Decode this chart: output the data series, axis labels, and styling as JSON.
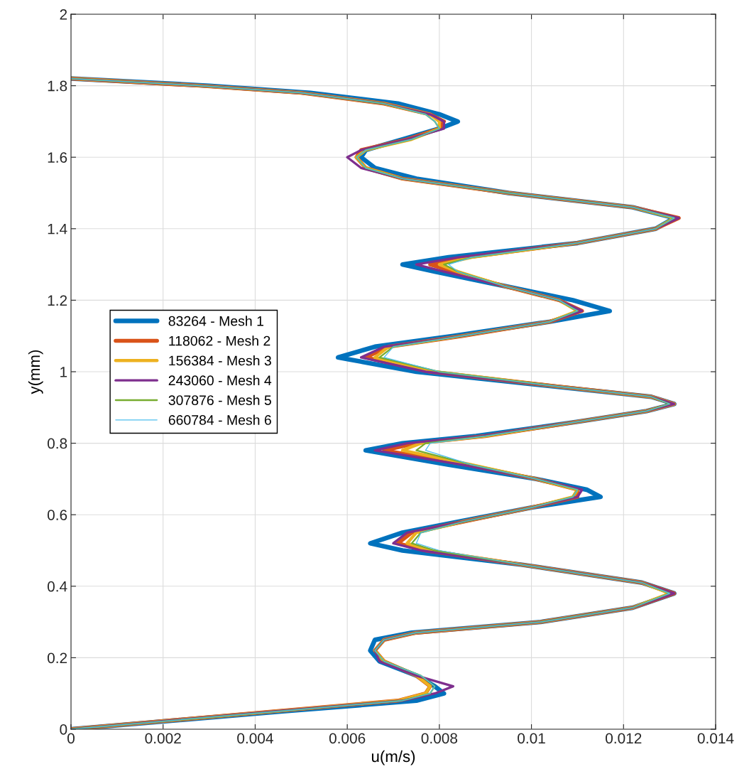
{
  "chart_data": {
    "type": "line",
    "xlabel": "u(m/s)",
    "ylabel": "y(mm)",
    "xlim": [
      0,
      0.014
    ],
    "ylim": [
      0,
      2
    ],
    "xticks": [
      0,
      0.002,
      0.004,
      0.006,
      0.008,
      0.01,
      0.012,
      0.014
    ],
    "yticks": [
      0,
      0.2,
      0.4,
      0.6,
      0.8,
      1,
      1.2,
      1.4,
      1.6,
      1.8,
      2
    ],
    "grid": true,
    "legend": "center left",
    "marker": "none",
    "line_style": "solid",
    "series": [
      {
        "name": "83264 - Mesh 1",
        "color": "#0072bd",
        "x": [
          0,
          0.0046,
          0.0075,
          0.0081,
          0.0079,
          0.0075,
          0.0067,
          0.0065,
          0.0066,
          0.0074,
          0.0102,
          0.0122,
          0.0131,
          0.0124,
          0.0098,
          0.0072,
          0.0065,
          0.0072,
          0.0084,
          0.01,
          0.0115,
          0.0112,
          0.0101,
          0.0082,
          0.0064,
          0.0072,
          0.0088,
          0.011,
          0.0125,
          0.0131,
          0.0126,
          0.0104,
          0.0075,
          0.0058,
          0.0066,
          0.0083,
          0.0104,
          0.0117,
          0.0109,
          0.0094,
          0.0079,
          0.0072,
          0.0082,
          0.011,
          0.0127,
          0.0131,
          0.0122,
          0.0095,
          0.0075,
          0.0066,
          0.0063,
          0.0064,
          0.0072,
          0.008,
          0.0084,
          0.008,
          0.0071,
          0.0052,
          0.003,
          0
        ],
        "values": [
          0,
          0.05,
          0.08,
          0.1,
          0.12,
          0.15,
          0.19,
          0.22,
          0.25,
          0.27,
          0.3,
          0.34,
          0.38,
          0.41,
          0.46,
          0.5,
          0.52,
          0.55,
          0.58,
          0.62,
          0.65,
          0.67,
          0.7,
          0.74,
          0.78,
          0.8,
          0.82,
          0.86,
          0.89,
          0.91,
          0.93,
          0.96,
          1,
          1.04,
          1.07,
          1.1,
          1.14,
          1.17,
          1.2,
          1.24,
          1.28,
          1.3,
          1.32,
          1.36,
          1.4,
          1.43,
          1.46,
          1.5,
          1.54,
          1.57,
          1.6,
          1.62,
          1.65,
          1.68,
          1.7,
          1.72,
          1.75,
          1.78,
          1.8,
          1.82
        ]
      },
      {
        "name": "118062 - Mesh 2",
        "color": "#d95319",
        "x": [
          0,
          0.0044,
          0.0071,
          0.0077,
          0.0078,
          0.0075,
          0.0068,
          0.0066,
          0.0068,
          0.0075,
          0.0102,
          0.0122,
          0.0131,
          0.0124,
          0.0098,
          0.0077,
          0.0071,
          0.0074,
          0.0085,
          0.01,
          0.011,
          0.011,
          0.0101,
          0.0086,
          0.0068,
          0.0075,
          0.009,
          0.011,
          0.0125,
          0.0131,
          0.0126,
          0.0105,
          0.0078,
          0.0064,
          0.0069,
          0.0085,
          0.0104,
          0.0111,
          0.0106,
          0.0094,
          0.0083,
          0.0078,
          0.0086,
          0.011,
          0.0127,
          0.0132,
          0.0122,
          0.0095,
          0.0072,
          0.0064,
          0.0062,
          0.0063,
          0.0073,
          0.008,
          0.0081,
          0.0078,
          0.0068,
          0.005,
          0.0028,
          0
        ],
        "values": [
          0,
          0.05,
          0.08,
          0.1,
          0.12,
          0.15,
          0.19,
          0.22,
          0.25,
          0.27,
          0.3,
          0.34,
          0.38,
          0.41,
          0.46,
          0.5,
          0.52,
          0.55,
          0.58,
          0.62,
          0.65,
          0.67,
          0.7,
          0.74,
          0.78,
          0.8,
          0.82,
          0.86,
          0.89,
          0.91,
          0.93,
          0.96,
          1,
          1.04,
          1.07,
          1.1,
          1.14,
          1.17,
          1.2,
          1.24,
          1.28,
          1.3,
          1.32,
          1.36,
          1.4,
          1.43,
          1.46,
          1.5,
          1.54,
          1.57,
          1.6,
          1.62,
          1.65,
          1.68,
          1.7,
          1.72,
          1.75,
          1.78,
          1.8,
          1.82
        ]
      },
      {
        "name": "156384 - Mesh 3",
        "color": "#edb120",
        "x": [
          0,
          0.0044,
          0.0071,
          0.0077,
          0.0078,
          0.0075,
          0.0068,
          0.0066,
          0.0068,
          0.0075,
          0.0102,
          0.0122,
          0.013,
          0.0124,
          0.0098,
          0.0078,
          0.0073,
          0.0075,
          0.0085,
          0.01,
          0.0109,
          0.011,
          0.0101,
          0.0087,
          0.0072,
          0.0076,
          0.009,
          0.011,
          0.0125,
          0.0131,
          0.0126,
          0.0105,
          0.0079,
          0.0066,
          0.0069,
          0.0085,
          0.0104,
          0.011,
          0.0106,
          0.0094,
          0.0084,
          0.008,
          0.0087,
          0.011,
          0.0127,
          0.0131,
          0.0122,
          0.0095,
          0.0072,
          0.0064,
          0.0062,
          0.0064,
          0.0074,
          0.008,
          0.008,
          0.0078,
          0.0068,
          0.005,
          0.0028,
          0
        ],
        "values": [
          0,
          0.05,
          0.08,
          0.1,
          0.12,
          0.15,
          0.19,
          0.22,
          0.25,
          0.27,
          0.3,
          0.34,
          0.38,
          0.41,
          0.46,
          0.5,
          0.52,
          0.55,
          0.58,
          0.62,
          0.65,
          0.67,
          0.7,
          0.74,
          0.78,
          0.8,
          0.82,
          0.86,
          0.89,
          0.91,
          0.93,
          0.96,
          1,
          1.04,
          1.07,
          1.1,
          1.14,
          1.17,
          1.2,
          1.24,
          1.28,
          1.3,
          1.32,
          1.36,
          1.4,
          1.43,
          1.46,
          1.5,
          1.54,
          1.57,
          1.6,
          1.62,
          1.65,
          1.68,
          1.7,
          1.72,
          1.75,
          1.78,
          1.8,
          1.82
        ]
      },
      {
        "name": "243060 - Mesh 4",
        "color": "#7e2f8e",
        "x": [
          0,
          0.0044,
          0.0072,
          0.0079,
          0.0083,
          0.0075,
          0.0067,
          0.0066,
          0.0068,
          0.0075,
          0.0102,
          0.0122,
          0.0131,
          0.0124,
          0.0098,
          0.0076,
          0.007,
          0.0073,
          0.0085,
          0.01,
          0.011,
          0.0111,
          0.0101,
          0.0085,
          0.0066,
          0.0073,
          0.0089,
          0.011,
          0.0125,
          0.0131,
          0.0126,
          0.0105,
          0.0077,
          0.0063,
          0.0068,
          0.0085,
          0.0104,
          0.0111,
          0.0106,
          0.0094,
          0.0081,
          0.0075,
          0.0084,
          0.011,
          0.0127,
          0.0132,
          0.0122,
          0.0095,
          0.0072,
          0.0063,
          0.006,
          0.0063,
          0.0073,
          0.0081,
          0.0081,
          0.0078,
          0.0068,
          0.005,
          0.0028,
          0
        ],
        "values": [
          0,
          0.05,
          0.08,
          0.1,
          0.12,
          0.15,
          0.19,
          0.22,
          0.25,
          0.27,
          0.3,
          0.34,
          0.38,
          0.41,
          0.46,
          0.5,
          0.52,
          0.55,
          0.58,
          0.62,
          0.65,
          0.67,
          0.7,
          0.74,
          0.78,
          0.8,
          0.82,
          0.86,
          0.89,
          0.91,
          0.93,
          0.96,
          1,
          1.04,
          1.07,
          1.1,
          1.14,
          1.17,
          1.2,
          1.24,
          1.28,
          1.3,
          1.32,
          1.36,
          1.4,
          1.43,
          1.46,
          1.5,
          1.54,
          1.57,
          1.6,
          1.62,
          1.65,
          1.68,
          1.7,
          1.72,
          1.75,
          1.78,
          1.8,
          1.82
        ]
      },
      {
        "name": "307876 - Mesh 5",
        "color": "#77ac30",
        "x": [
          0,
          0.0045,
          0.0072,
          0.0078,
          0.0079,
          0.0076,
          0.0068,
          0.0066,
          0.0068,
          0.0075,
          0.0102,
          0.0122,
          0.013,
          0.0124,
          0.0098,
          0.0079,
          0.0074,
          0.0076,
          0.0085,
          0.01,
          0.0109,
          0.011,
          0.0101,
          0.0087,
          0.0075,
          0.0077,
          0.009,
          0.011,
          0.0125,
          0.013,
          0.0126,
          0.0105,
          0.008,
          0.0067,
          0.007,
          0.0085,
          0.0104,
          0.011,
          0.0106,
          0.0094,
          0.0084,
          0.0081,
          0.0087,
          0.011,
          0.0127,
          0.0131,
          0.0122,
          0.0095,
          0.0072,
          0.0064,
          0.0062,
          0.0064,
          0.0074,
          0.008,
          0.0079,
          0.0077,
          0.0068,
          0.005,
          0.0028,
          0
        ],
        "values": [
          0,
          0.05,
          0.08,
          0.1,
          0.12,
          0.15,
          0.19,
          0.22,
          0.25,
          0.27,
          0.3,
          0.34,
          0.38,
          0.41,
          0.46,
          0.5,
          0.52,
          0.55,
          0.58,
          0.62,
          0.65,
          0.67,
          0.7,
          0.74,
          0.78,
          0.8,
          0.82,
          0.86,
          0.89,
          0.91,
          0.93,
          0.96,
          1,
          1.04,
          1.07,
          1.1,
          1.14,
          1.17,
          1.2,
          1.24,
          1.28,
          1.3,
          1.32,
          1.36,
          1.4,
          1.43,
          1.46,
          1.5,
          1.54,
          1.57,
          1.6,
          1.62,
          1.65,
          1.68,
          1.7,
          1.72,
          1.75,
          1.78,
          1.8,
          1.82
        ]
      },
      {
        "name": "660784 - Mesh 6",
        "color": "#4dbeee",
        "x": [
          0,
          0.0045,
          0.0072,
          0.0078,
          0.0079,
          0.0076,
          0.0068,
          0.0066,
          0.0068,
          0.0075,
          0.0102,
          0.0122,
          0.013,
          0.0124,
          0.0098,
          0.008,
          0.0075,
          0.0076,
          0.0085,
          0.01,
          0.0109,
          0.011,
          0.0101,
          0.0087,
          0.0077,
          0.0078,
          0.009,
          0.011,
          0.0125,
          0.013,
          0.0126,
          0.0105,
          0.008,
          0.0068,
          0.007,
          0.0085,
          0.0104,
          0.011,
          0.0106,
          0.0094,
          0.0084,
          0.0082,
          0.0087,
          0.011,
          0.0127,
          0.0131,
          0.0122,
          0.0095,
          0.0072,
          0.0064,
          0.0062,
          0.0064,
          0.0074,
          0.008,
          0.0079,
          0.0077,
          0.0068,
          0.005,
          0.0028,
          0
        ],
        "values": [
          0,
          0.05,
          0.08,
          0.1,
          0.12,
          0.15,
          0.19,
          0.22,
          0.25,
          0.27,
          0.3,
          0.34,
          0.38,
          0.41,
          0.46,
          0.5,
          0.52,
          0.55,
          0.58,
          0.62,
          0.65,
          0.67,
          0.7,
          0.74,
          0.78,
          0.8,
          0.82,
          0.86,
          0.89,
          0.91,
          0.93,
          0.96,
          1,
          1.04,
          1.07,
          1.1,
          1.14,
          1.17,
          1.2,
          1.24,
          1.28,
          1.3,
          1.32,
          1.36,
          1.4,
          1.43,
          1.46,
          1.5,
          1.54,
          1.57,
          1.6,
          1.62,
          1.65,
          1.68,
          1.7,
          1.72,
          1.75,
          1.78,
          1.8,
          1.82
        ]
      }
    ]
  }
}
